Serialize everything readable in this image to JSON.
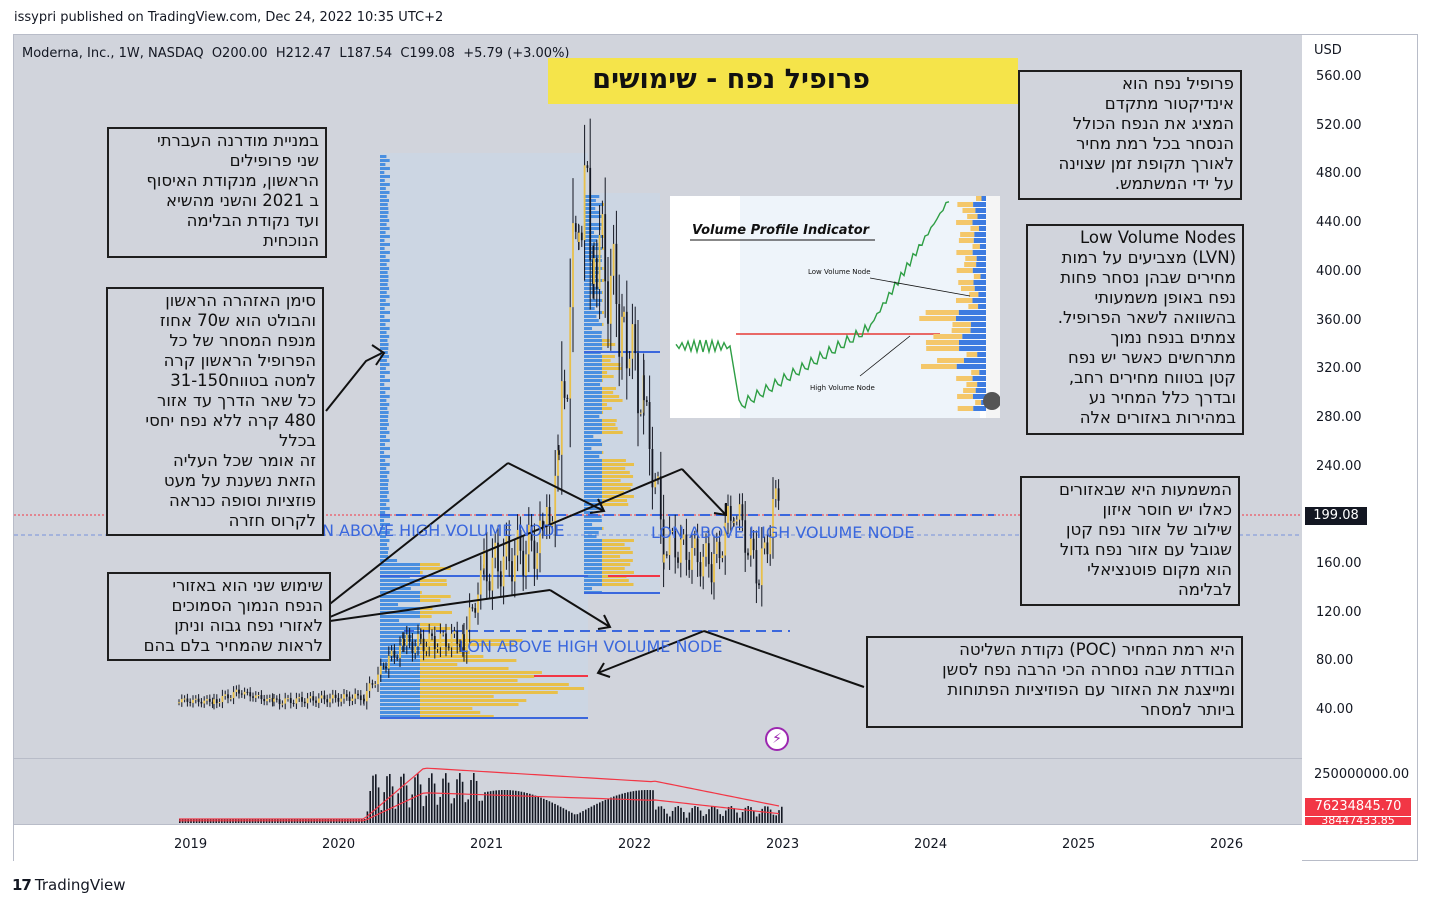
{
  "header": {
    "published": "issypri published on TradingView.com, Dec 24, 2022 10:35 UTC+2"
  },
  "symbol": {
    "name": "Moderna, Inc., 1W, NASDAQ",
    "open": "O200.00",
    "high": "H212.47",
    "low": "L187.54",
    "close": "C199.08",
    "change": "+5.79 (+3.00%)"
  },
  "title": "פרופיל נפח - שימושים",
  "price_axis": {
    "currency": "USD",
    "ticks": [
      "560.00",
      "520.00",
      "480.00",
      "440.00",
      "400.00",
      "360.00",
      "320.00",
      "280.00",
      "240.00",
      "200.00",
      "160.00",
      "120.00",
      "80.00",
      "40.00"
    ],
    "last_price": "199.08"
  },
  "volume_axis": {
    "tick": "250000000.00",
    "volume_value": "76234845.70",
    "volume_ma": "38447433.85"
  },
  "time_axis": {
    "ticks": [
      "2019",
      "2020",
      "2021",
      "2022",
      "2023",
      "2024",
      "2025",
      "2026"
    ]
  },
  "annotations": {
    "lon_label_1": "LON ABOVE HIGH VOLUME NODE",
    "lon_label_2": "LON ABOVE HIGH VOLUME NODE",
    "lon_label_3": "LON ABOVE HIGH VOLUME NODE",
    "note_profiles": [
      "במניית מודרנה העברתי",
      "שני פרופילים",
      "הראשון, מנקודת האיסוף",
      "ב 2021 והשני מהשיא",
      "ועד נקודת הבלימה",
      "הנוכחית"
    ],
    "note_warning": [
      "סימן האזהרה הראשון",
      "והבולט הוא ש70 אחוז",
      "מנפח המסחר של כל",
      "הפרופיל הראשון קרה",
      "למטה בטווח31-150",
      "כל שאר הדרך עד אזור",
      "480 קרה ללא נפח יחסי",
      "בכלל",
      "זה אומר שכל העליה",
      "הזאת נשענת על מעט",
      "פוזציות וסופה כנראה",
      "לקרוס חזרה"
    ],
    "note_second_use": [
      "שימוש שני הוא באזורי",
      "הנפח הנמוך הסמוכים",
      "לאזורי נפח גבוה וניתן",
      "לראות שהמחיר בלם בהם"
    ],
    "note_definition": [
      "פרופיל נפח הוא",
      "אינדיקטור מתקדם",
      "המציג את הנפח הכולל",
      "הנסחר בכל רמת מחיר",
      "לאורך תקופת זמן שצוינה",
      "על ידי המשתמש."
    ],
    "note_lvn": [
      "Low Volume Nodes",
      "(LVN) מצביעים על רמות",
      "מחירים שבהן נסחר פחות",
      "נפח באופן משמעותי",
      "בהשוואה לשאר הפרופיל.",
      "צמתים בנפח נמוך",
      "מתרחשים כאשר יש נפח",
      "קטן בטווח מחירים רחב,",
      "ובדרך כלל המחיר נע",
      "במהירות באזורים אלה"
    ],
    "note_meaning": [
      "המשמעות היא שבאזורים",
      "כאלו יש חוסר איזון",
      "שילוב של אזור נפח קטן",
      "שגובל עם אזור נפח גדול",
      "הוא מקום פוטנציאלי",
      "לבלימה"
    ],
    "note_poc": [
      "היא רמת המחיר (POC) נקודת השליטה",
      "הבודדת שבה נסחרה הכי הרבה נפח לסשן",
      "ומייצגת את האזור עם הפוזיציות הפתוחות",
      "ביותר למסחר"
    ]
  },
  "inset": {
    "title": "Volume Profile Indicator",
    "low_label": "Low Volume Node",
    "high_label": "High Volume Node"
  },
  "footer": {
    "brand": "TradingView"
  },
  "colors": {
    "up": "#e8c04a",
    "down": "#131722",
    "profile_blue": "#4a8fe0",
    "poc": "#f23645",
    "bg": "#d1d4dc"
  }
}
